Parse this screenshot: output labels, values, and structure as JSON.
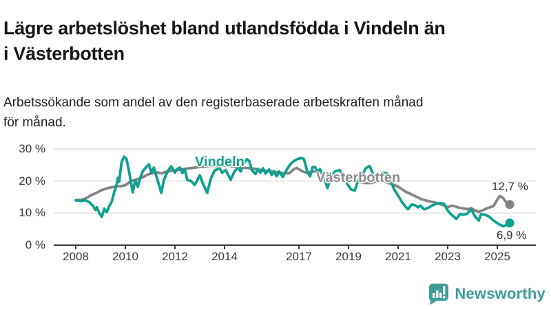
{
  "header": {
    "title": "Lägre arbetslöshet bland utlandsfödda i Vindeln än\ni Västerbotten",
    "subtitle": "Arbetssökande som andel av den registerbaserade arbetskraften månad\nför månad."
  },
  "footer": {
    "brand_name": "Newsworthy",
    "brand_color": "#3e9d97",
    "logo_icon": "speech-bubble-bar-chart-icon"
  },
  "chart_data": {
    "type": "line",
    "unit": "%",
    "grid": true,
    "legend_position": "inline-labels",
    "colors": {
      "grid": "#dcdcdc",
      "axis": "#3a3a3a",
      "tick_text": "#3a3a3a"
    },
    "x_axis": {
      "ticks": [
        2008,
        2010,
        2012,
        2014,
        2017,
        2019,
        2021,
        2023,
        2025
      ],
      "tick_labels": [
        "2008",
        "2010",
        "2012",
        "2014",
        "2017",
        "2019",
        "2021",
        "2023",
        "2025"
      ],
      "range_years": [
        2008,
        2025.5
      ]
    },
    "y_axis": {
      "ticks": [
        30,
        20,
        10,
        0
      ],
      "tick_labels": [
        "30 %",
        "20 %",
        "10 %",
        "0 %"
      ],
      "range": [
        0,
        30
      ]
    },
    "series": [
      {
        "name": "Västerbotten",
        "color": "#848484",
        "end_label": "12,7 %",
        "end_value": 12.7,
        "points": [
          [
            2008.0,
            14.0
          ],
          [
            2008.2,
            14.1
          ],
          [
            2008.4,
            14.6
          ],
          [
            2008.6,
            15.5
          ],
          [
            2008.8,
            16.2
          ],
          [
            2009.0,
            17.0
          ],
          [
            2009.2,
            17.6
          ],
          [
            2009.4,
            18.0
          ],
          [
            2009.6,
            18.3
          ],
          [
            2009.8,
            18.4
          ],
          [
            2010.0,
            18.7
          ],
          [
            2010.2,
            19.8
          ],
          [
            2010.35,
            20.3
          ],
          [
            2010.5,
            20.6
          ],
          [
            2010.7,
            21.2
          ],
          [
            2010.9,
            22.0
          ],
          [
            2011.1,
            22.5
          ],
          [
            2011.3,
            22.7
          ],
          [
            2011.45,
            22.4
          ],
          [
            2011.6,
            22.8
          ],
          [
            2011.8,
            23.1
          ],
          [
            2012.0,
            23.4
          ],
          [
            2012.2,
            23.6
          ],
          [
            2012.4,
            23.8
          ],
          [
            2012.6,
            24.0
          ],
          [
            2012.8,
            24.2
          ],
          [
            2013.0,
            24.4
          ],
          [
            2013.2,
            24.5
          ],
          [
            2013.4,
            24.7
          ],
          [
            2013.6,
            24.7
          ],
          [
            2013.8,
            24.8
          ],
          [
            2014.0,
            24.9
          ],
          [
            2014.2,
            24.7
          ],
          [
            2014.4,
            24.5
          ],
          [
            2014.6,
            24.4
          ],
          [
            2014.8,
            24.2
          ],
          [
            2015.0,
            24.0
          ],
          [
            2015.2,
            23.8
          ],
          [
            2015.4,
            23.5
          ],
          [
            2015.6,
            23.3
          ],
          [
            2015.8,
            23.1
          ],
          [
            2016.0,
            22.9
          ],
          [
            2016.2,
            22.7
          ],
          [
            2016.4,
            22.5
          ],
          [
            2016.6,
            22.4
          ],
          [
            2016.8,
            23.7
          ],
          [
            2016.9,
            24.1
          ],
          [
            2017.0,
            23.7
          ],
          [
            2017.15,
            23.0
          ],
          [
            2017.3,
            22.6
          ],
          [
            2017.45,
            22.8
          ],
          [
            2017.6,
            23.0
          ],
          [
            2017.75,
            22.8
          ],
          [
            2017.9,
            22.6
          ],
          [
            2018.1,
            22.2
          ],
          [
            2018.3,
            21.8
          ],
          [
            2018.5,
            21.4
          ],
          [
            2018.7,
            21.0
          ],
          [
            2018.9,
            20.6
          ],
          [
            2019.1,
            20.2
          ],
          [
            2019.3,
            19.9
          ],
          [
            2019.5,
            19.6
          ],
          [
            2019.7,
            19.4
          ],
          [
            2019.9,
            19.4
          ],
          [
            2020.1,
            19.8
          ],
          [
            2020.3,
            20.0
          ],
          [
            2020.5,
            19.7
          ],
          [
            2020.7,
            19.2
          ],
          [
            2020.9,
            18.6
          ],
          [
            2021.05,
            18.0
          ],
          [
            2021.2,
            17.2
          ],
          [
            2021.35,
            16.5
          ],
          [
            2021.5,
            16.0
          ],
          [
            2021.65,
            15.4
          ],
          [
            2021.8,
            14.9
          ],
          [
            2021.95,
            14.3
          ],
          [
            2022.1,
            14.0
          ],
          [
            2022.3,
            13.6
          ],
          [
            2022.5,
            13.3
          ],
          [
            2022.7,
            12.8
          ],
          [
            2022.85,
            12.4
          ],
          [
            2023.0,
            11.8
          ],
          [
            2023.15,
            12.3
          ],
          [
            2023.3,
            12.1
          ],
          [
            2023.5,
            11.6
          ],
          [
            2023.65,
            11.4
          ],
          [
            2023.8,
            11.2
          ],
          [
            2023.95,
            11.5
          ],
          [
            2024.1,
            10.8
          ],
          [
            2024.25,
            10.4
          ],
          [
            2024.4,
            10.8
          ],
          [
            2024.55,
            11.4
          ],
          [
            2024.7,
            11.8
          ],
          [
            2024.85,
            12.2
          ],
          [
            2025.0,
            14.2
          ],
          [
            2025.1,
            15.3
          ],
          [
            2025.2,
            15.0
          ],
          [
            2025.35,
            13.5
          ],
          [
            2025.5,
            12.7
          ]
        ]
      },
      {
        "name": "Vindeln",
        "color": "#10a08f",
        "end_label": "6,9 %",
        "end_value": 6.9,
        "points": [
          [
            2008.0,
            14.0
          ],
          [
            2008.2,
            13.8
          ],
          [
            2008.4,
            14.0
          ],
          [
            2008.55,
            13.4
          ],
          [
            2008.7,
            12.2
          ],
          [
            2008.8,
            11.0
          ],
          [
            2008.85,
            11.8
          ],
          [
            2008.95,
            10.0
          ],
          [
            2009.05,
            8.8
          ],
          [
            2009.15,
            11.4
          ],
          [
            2009.25,
            10.3
          ],
          [
            2009.35,
            12.2
          ],
          [
            2009.45,
            13.5
          ],
          [
            2009.55,
            16.5
          ],
          [
            2009.65,
            19.0
          ],
          [
            2009.7,
            21.0
          ],
          [
            2009.75,
            19.8
          ],
          [
            2009.85,
            26.0
          ],
          [
            2009.95,
            27.6
          ],
          [
            2010.05,
            26.8
          ],
          [
            2010.15,
            23.0
          ],
          [
            2010.25,
            18.5
          ],
          [
            2010.3,
            16.5
          ],
          [
            2010.4,
            20.3
          ],
          [
            2010.5,
            18.2
          ],
          [
            2010.6,
            21.0
          ],
          [
            2010.7,
            23.0
          ],
          [
            2010.8,
            24.0
          ],
          [
            2010.95,
            25.2
          ],
          [
            2011.05,
            22.6
          ],
          [
            2011.15,
            24.2
          ],
          [
            2011.3,
            20.3
          ],
          [
            2011.45,
            16.3
          ],
          [
            2011.55,
            20.2
          ],
          [
            2011.7,
            23.0
          ],
          [
            2011.85,
            24.6
          ],
          [
            2012.0,
            22.6
          ],
          [
            2012.1,
            23.8
          ],
          [
            2012.2,
            24.2
          ],
          [
            2012.3,
            22.5
          ],
          [
            2012.4,
            23.6
          ],
          [
            2012.5,
            20.3
          ],
          [
            2012.65,
            20.0
          ],
          [
            2012.8,
            18.8
          ],
          [
            2013.0,
            21.8
          ],
          [
            2013.15,
            18.8
          ],
          [
            2013.3,
            16.3
          ],
          [
            2013.45,
            20.8
          ],
          [
            2013.6,
            23.3
          ],
          [
            2013.8,
            24.0
          ],
          [
            2013.9,
            22.6
          ],
          [
            2014.05,
            23.4
          ],
          [
            2014.25,
            20.4
          ],
          [
            2014.4,
            23.0
          ],
          [
            2014.55,
            24.2
          ],
          [
            2014.65,
            23.0
          ],
          [
            2014.8,
            25.8
          ],
          [
            2014.9,
            26.8
          ],
          [
            2015.0,
            26.2
          ],
          [
            2015.1,
            23.4
          ],
          [
            2015.25,
            22.2
          ],
          [
            2015.35,
            23.8
          ],
          [
            2015.45,
            22.6
          ],
          [
            2015.55,
            24.0
          ],
          [
            2015.65,
            22.4
          ],
          [
            2015.8,
            23.6
          ],
          [
            2015.9,
            21.9
          ],
          [
            2016.0,
            23.0
          ],
          [
            2016.1,
            21.5
          ],
          [
            2016.2,
            23.0
          ],
          [
            2016.35,
            21.3
          ],
          [
            2016.5,
            23.4
          ],
          [
            2016.65,
            25.2
          ],
          [
            2016.8,
            26.3
          ],
          [
            2016.95,
            26.9
          ],
          [
            2017.1,
            27.2
          ],
          [
            2017.2,
            26.9
          ],
          [
            2017.35,
            22.6
          ],
          [
            2017.45,
            21.5
          ],
          [
            2017.55,
            24.3
          ],
          [
            2017.65,
            24.4
          ],
          [
            2017.75,
            23.0
          ],
          [
            2017.85,
            23.7
          ],
          [
            2018.0,
            21.3
          ],
          [
            2018.15,
            17.8
          ],
          [
            2018.3,
            21.3
          ],
          [
            2018.45,
            23.0
          ],
          [
            2018.65,
            23.4
          ],
          [
            2018.8,
            21.3
          ],
          [
            2018.95,
            19.1
          ],
          [
            2019.1,
            17.4
          ],
          [
            2019.25,
            17.0
          ],
          [
            2019.4,
            20.4
          ],
          [
            2019.55,
            21.9
          ],
          [
            2019.7,
            24.0
          ],
          [
            2019.85,
            24.7
          ],
          [
            2020.0,
            22.0
          ],
          [
            2020.1,
            20.4
          ],
          [
            2020.25,
            21.9
          ],
          [
            2020.4,
            22.6
          ],
          [
            2020.55,
            22.5
          ],
          [
            2020.65,
            20.4
          ],
          [
            2020.75,
            19.1
          ],
          [
            2020.85,
            17.2
          ],
          [
            2021.0,
            15.5
          ],
          [
            2021.15,
            13.5
          ],
          [
            2021.3,
            12.0
          ],
          [
            2021.4,
            11.2
          ],
          [
            2021.55,
            12.7
          ],
          [
            2021.7,
            12.4
          ],
          [
            2021.8,
            11.8
          ],
          [
            2021.9,
            12.3
          ],
          [
            2022.05,
            11.2
          ],
          [
            2022.2,
            11.6
          ],
          [
            2022.4,
            12.5
          ],
          [
            2022.55,
            12.9
          ],
          [
            2022.7,
            13.1
          ],
          [
            2022.85,
            12.9
          ],
          [
            2023.0,
            10.8
          ],
          [
            2023.15,
            9.5
          ],
          [
            2023.35,
            8.2
          ],
          [
            2023.5,
            9.7
          ],
          [
            2023.65,
            9.5
          ],
          [
            2023.8,
            9.9
          ],
          [
            2023.95,
            11.2
          ],
          [
            2024.1,
            9.0
          ],
          [
            2024.25,
            7.7
          ],
          [
            2024.35,
            9.7
          ],
          [
            2024.5,
            9.5
          ],
          [
            2024.65,
            9.0
          ],
          [
            2024.8,
            8.0
          ],
          [
            2024.95,
            7.1
          ],
          [
            2025.1,
            6.4
          ],
          [
            2025.25,
            5.9
          ],
          [
            2025.4,
            6.4
          ],
          [
            2025.5,
            6.9
          ]
        ]
      }
    ]
  }
}
